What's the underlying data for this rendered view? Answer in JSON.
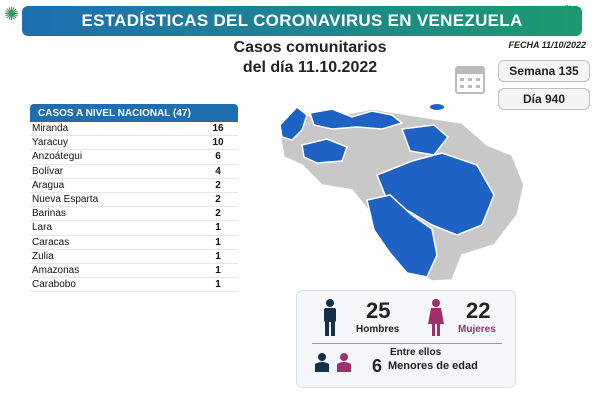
{
  "header": {
    "title": "ESTADÍSTICAS DEL CORONAVIRUS EN VENEZUELA"
  },
  "fecha": "FECHA 11/10/2022",
  "main_title": {
    "line1": "Casos comunitarios",
    "line2": "del día 11.10.2022"
  },
  "semana": "Semana 135",
  "dia": "Día 940",
  "table": {
    "header": "CASOS A NIVEL NACIONAL (47)",
    "rows": [
      {
        "name": "Miranda",
        "value": "16"
      },
      {
        "name": "Yaracuy",
        "value": "10"
      },
      {
        "name": "Anzoátegui",
        "value": "6"
      },
      {
        "name": "Bolívar",
        "value": "4"
      },
      {
        "name": "Aragua",
        "value": "2"
      },
      {
        "name": "Nueva Esparta",
        "value": "2"
      },
      {
        "name": "Barinas",
        "value": "2"
      },
      {
        "name": "Lara",
        "value": "1"
      },
      {
        "name": "Caracas",
        "value": "1"
      },
      {
        "name": "Zulia",
        "value": "1"
      },
      {
        "name": "Amazonas",
        "value": "1"
      },
      {
        "name": "Carabobo",
        "value": "1"
      }
    ]
  },
  "stats": {
    "hombres_count": "25",
    "hombres_label": "Hombres",
    "mujeres_count": "22",
    "mujeres_label": "Mujeres",
    "entre_ellos": "Entre ellos",
    "menores_count": "6",
    "menores_label": "Menores de edad"
  },
  "colors": {
    "header_start": "#1f6fb0",
    "header_end": "#1b9a6e",
    "map_active": "#1e63c4",
    "map_inactive": "#c8c8c8",
    "male": "#14304d",
    "female": "#a0306a"
  },
  "icons": [
    "virus-icon",
    "calendar-icon",
    "man-icon",
    "woman-icon",
    "children-icon"
  ]
}
